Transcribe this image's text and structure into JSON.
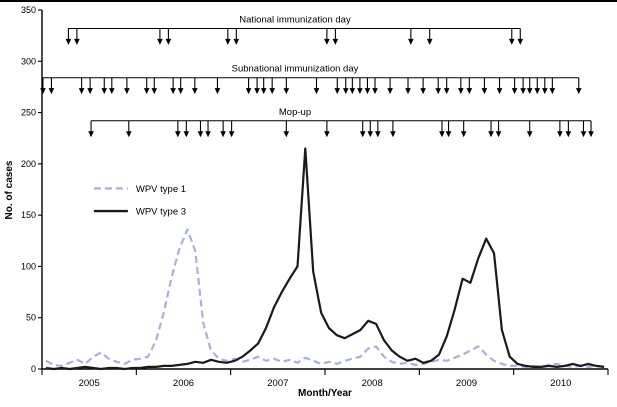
{
  "chart_data": {
    "type": "line",
    "title": "",
    "xlabel": "Month/Year",
    "ylabel": "No. of cases",
    "ylim": [
      0,
      350
    ],
    "yticks": [
      0,
      50,
      100,
      150,
      200,
      250,
      300,
      350
    ],
    "x_start_year": 2005,
    "x_end_year": 2011,
    "year_labels": [
      "2005",
      "2006",
      "2007",
      "2008",
      "2009",
      "2010"
    ],
    "grid": false,
    "legend_position": "upper-left-inside",
    "series": [
      {
        "name": "WPV type 1",
        "style": "dashed",
        "color": "#a7b2d8",
        "values": [
          8,
          4,
          3,
          6,
          9,
          5,
          12,
          16,
          10,
          7,
          5,
          9,
          10,
          12,
          28,
          55,
          90,
          118,
          136,
          115,
          45,
          18,
          10,
          8,
          10,
          7,
          9,
          12,
          8,
          10,
          7,
          9,
          6,
          11,
          8,
          5,
          7,
          5,
          8,
          10,
          12,
          20,
          22,
          12,
          7,
          5,
          6,
          4,
          5,
          7,
          9,
          8,
          11,
          14,
          18,
          22,
          14,
          8,
          5,
          3,
          3,
          2,
          3,
          2,
          4,
          5,
          3,
          2,
          3,
          2,
          3,
          2
        ]
      },
      {
        "name": "WPV type 3",
        "style": "solid",
        "color": "#1a1a1a",
        "values": [
          1,
          0,
          1,
          0,
          1,
          2,
          1,
          0,
          1,
          1,
          0,
          1,
          1,
          2,
          2,
          3,
          3,
          4,
          5,
          7,
          6,
          9,
          7,
          6,
          8,
          12,
          18,
          25,
          40,
          60,
          75,
          88,
          100,
          215,
          95,
          55,
          40,
          33,
          30,
          34,
          38,
          47,
          44,
          28,
          18,
          12,
          8,
          10,
          6,
          8,
          14,
          32,
          58,
          88,
          84,
          108,
          127,
          113,
          38,
          12,
          5,
          3,
          2,
          2,
          3,
          2,
          3,
          5,
          3,
          5,
          3,
          2
        ]
      }
    ],
    "campaigns": [
      {
        "label": "National immunization day",
        "line_value": 332,
        "tip_value": 316,
        "arrow_years": [
          2005.28,
          2005.37,
          2006.25,
          2006.34,
          2006.97,
          2007.06,
          2008.02,
          2008.11,
          2008.91,
          2009.11,
          2009.98,
          2010.07
        ]
      },
      {
        "label": "Subnational immunization day",
        "line_value": 284,
        "tip_value": 268,
        "arrow_years": [
          2005.01,
          2005.1,
          2005.42,
          2005.51,
          2005.66,
          2005.74,
          2005.9,
          2006.11,
          2006.19,
          2006.39,
          2006.47,
          2006.62,
          2006.86,
          2007.19,
          2007.28,
          2007.35,
          2007.44,
          2007.59,
          2007.91,
          2008.13,
          2008.22,
          2008.29,
          2008.37,
          2008.45,
          2008.53,
          2008.69,
          2008.88,
          2009.04,
          2009.2,
          2009.29,
          2009.44,
          2009.53,
          2009.69,
          2009.85,
          2010.01,
          2010.1,
          2010.17,
          2010.25,
          2010.33,
          2010.41,
          2010.69
        ]
      },
      {
        "label": "Mop-up",
        "line_value": 242,
        "tip_value": 226,
        "arrow_years": [
          2005.52,
          2005.92,
          2006.44,
          2006.53,
          2006.68,
          2006.76,
          2006.92,
          2007.01,
          2007.59,
          2008.02,
          2008.4,
          2008.48,
          2008.56,
          2008.72,
          2009.24,
          2009.31,
          2009.47,
          2009.76,
          2009.84,
          2010.17,
          2010.49,
          2010.58,
          2010.74,
          2010.82
        ]
      }
    ]
  }
}
